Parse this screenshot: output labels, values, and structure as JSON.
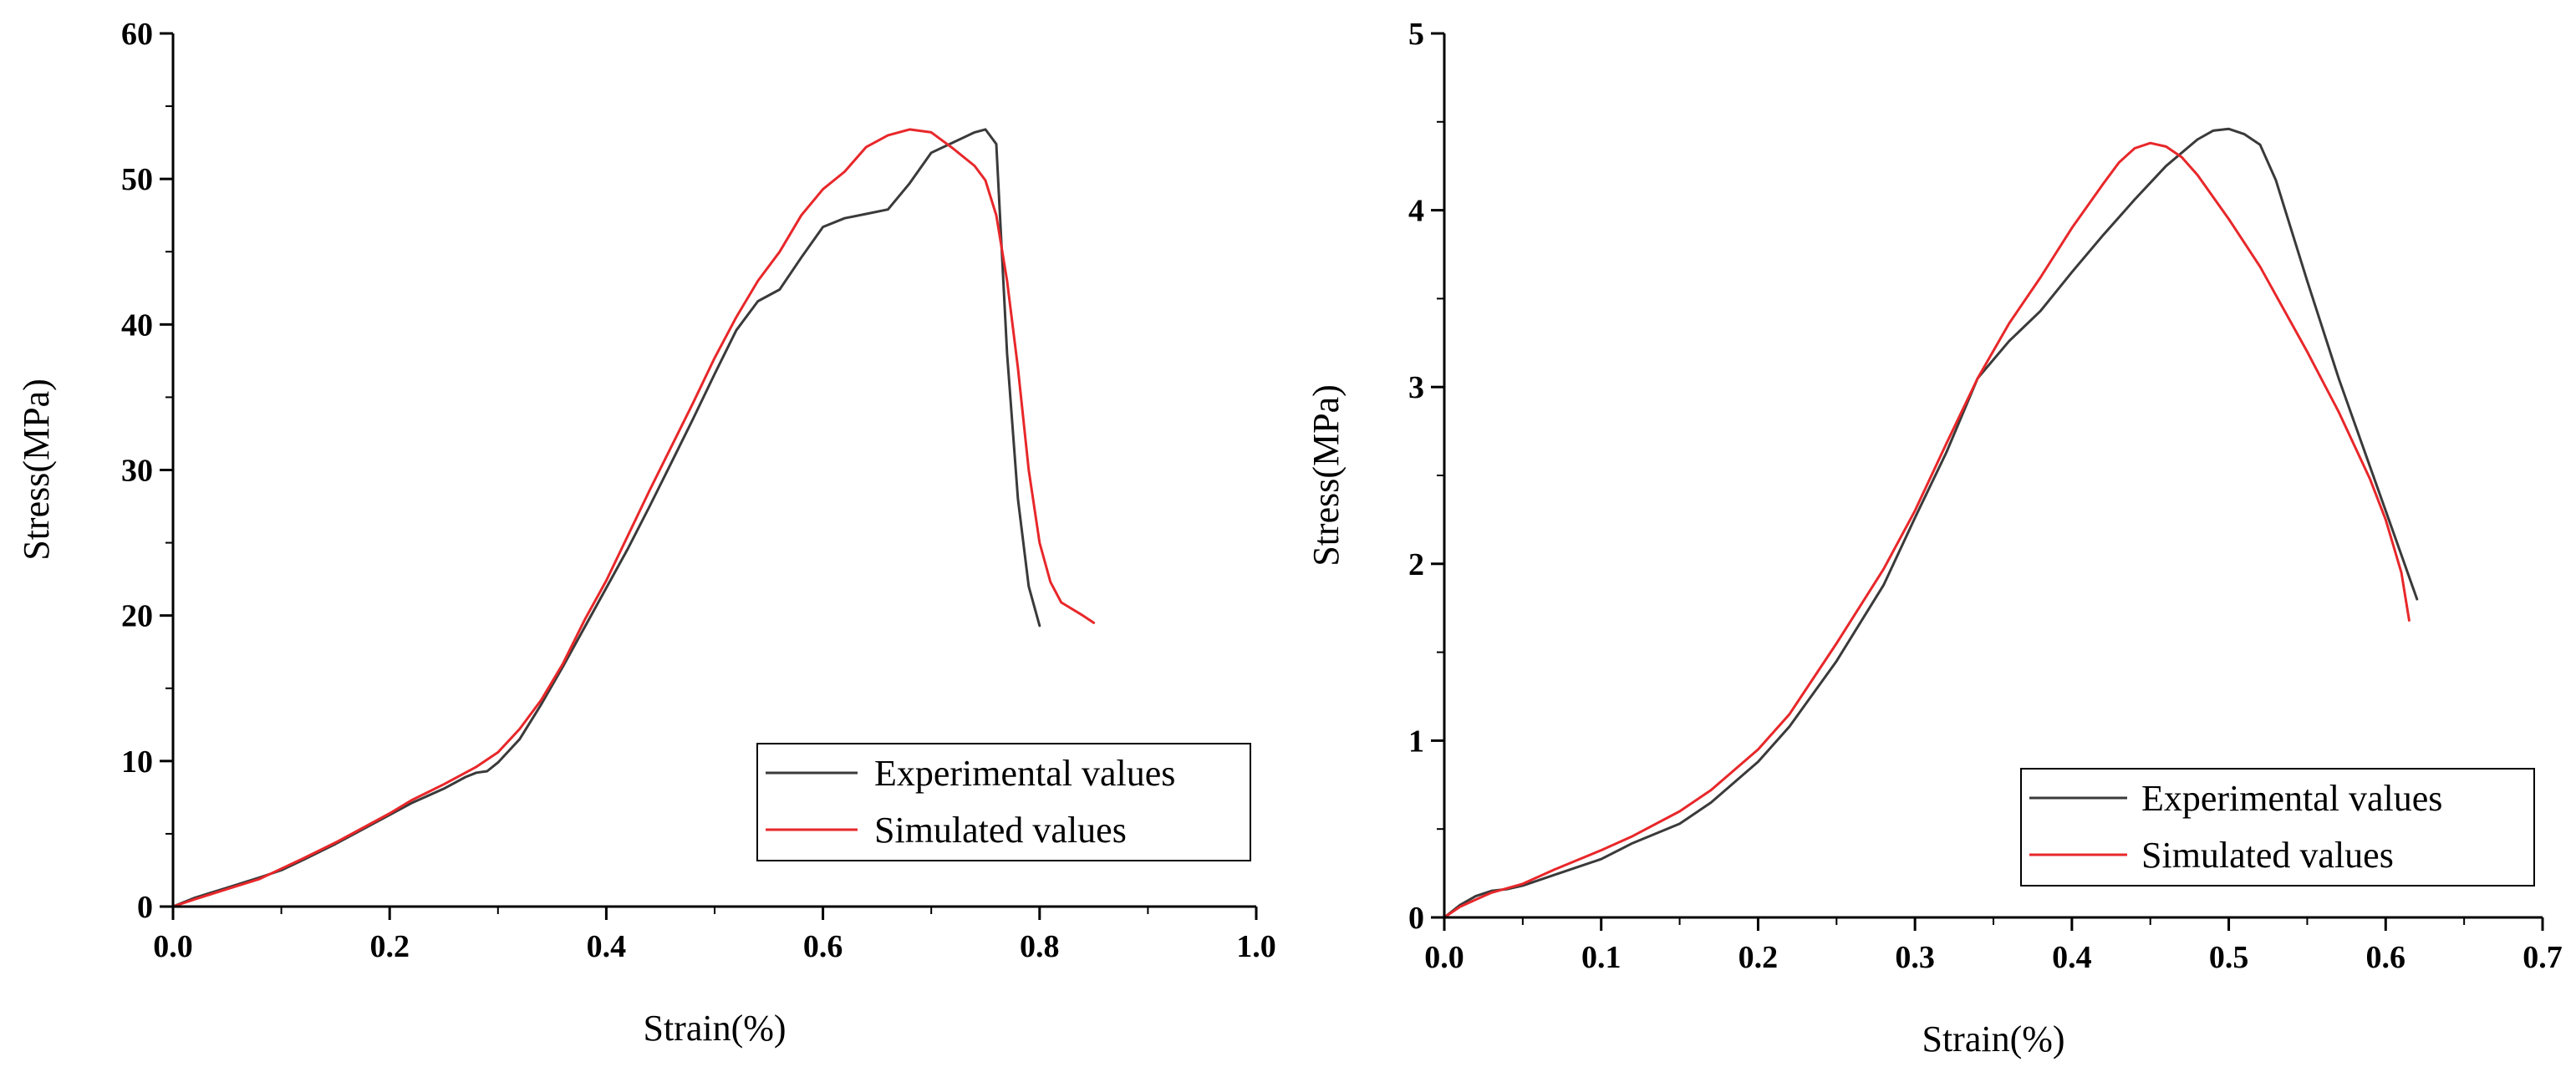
{
  "chart_data": [
    {
      "type": "line",
      "title": "",
      "xlabel": "Strain(%)",
      "ylabel": "Stress(MPa)",
      "xlim": [
        0,
        1.0
      ],
      "ylim": [
        0,
        60
      ],
      "xticks": [
        "0.0",
        "0.2",
        "0.4",
        "0.6",
        "0.8",
        "1.0"
      ],
      "yticks": [
        "0",
        "10",
        "20",
        "30",
        "40",
        "50",
        "60"
      ],
      "grid": false,
      "legend_position": "bottom-right",
      "series": [
        {
          "name": "Experimental values",
          "color": "#3a3a3a",
          "x": [
            0,
            0.02,
            0.05,
            0.08,
            0.1,
            0.12,
            0.15,
            0.18,
            0.2,
            0.22,
            0.25,
            0.27,
            0.28,
            0.29,
            0.3,
            0.32,
            0.34,
            0.36,
            0.38,
            0.4,
            0.42,
            0.44,
            0.46,
            0.48,
            0.5,
            0.52,
            0.54,
            0.56,
            0.58,
            0.6,
            0.62,
            0.64,
            0.66,
            0.68,
            0.7,
            0.72,
            0.74,
            0.75,
            0.76,
            0.77,
            0.78,
            0.79,
            0.8
          ],
          "y": [
            0,
            0.6,
            1.3,
            2.0,
            2.5,
            3.2,
            4.3,
            5.5,
            6.3,
            7.1,
            8.1,
            8.9,
            9.2,
            9.3,
            9.9,
            11.5,
            13.9,
            16.5,
            19.2,
            21.9,
            24.6,
            27.5,
            30.5,
            33.5,
            36.6,
            39.6,
            41.6,
            42.4,
            44.6,
            46.7,
            47.3,
            47.6,
            47.9,
            49.7,
            51.8,
            52.5,
            53.2,
            53.4,
            52.4,
            38.0,
            28.0,
            22.0,
            19.3
          ]
        },
        {
          "name": "Simulated values",
          "color": "#e8272a",
          "x": [
            0,
            0.02,
            0.05,
            0.08,
            0.1,
            0.12,
            0.15,
            0.18,
            0.2,
            0.22,
            0.25,
            0.28,
            0.3,
            0.32,
            0.34,
            0.36,
            0.38,
            0.4,
            0.42,
            0.44,
            0.46,
            0.48,
            0.5,
            0.52,
            0.54,
            0.56,
            0.58,
            0.6,
            0.62,
            0.64,
            0.66,
            0.68,
            0.7,
            0.72,
            0.74,
            0.75,
            0.76,
            0.77,
            0.78,
            0.79,
            0.8,
            0.81,
            0.82,
            0.84,
            0.85
          ],
          "y": [
            0,
            0.5,
            1.2,
            1.9,
            2.6,
            3.3,
            4.4,
            5.6,
            6.4,
            7.3,
            8.4,
            9.6,
            10.6,
            12.2,
            14.2,
            16.7,
            19.7,
            22.4,
            25.5,
            28.6,
            31.6,
            34.6,
            37.7,
            40.5,
            43.0,
            45.0,
            47.5,
            49.3,
            50.5,
            52.2,
            53.0,
            53.4,
            53.2,
            52.1,
            50.9,
            49.9,
            47.5,
            43.0,
            37.0,
            30.0,
            25.0,
            22.3,
            20.9,
            20.0,
            19.5
          ]
        }
      ]
    },
    {
      "type": "line",
      "title": "",
      "xlabel": "Strain(%)",
      "ylabel": "Stress(MPa)",
      "xlim": [
        0,
        0.7
      ],
      "ylim": [
        0,
        5
      ],
      "xticks": [
        "0.0",
        "0.1",
        "0.2",
        "0.3",
        "0.4",
        "0.5",
        "0.6",
        "0.7"
      ],
      "yticks": [
        "0",
        "1",
        "2",
        "3",
        "4",
        "5"
      ],
      "grid": false,
      "legend_position": "bottom-right",
      "series": [
        {
          "name": "Experimental values",
          "color": "#3a3a3a",
          "x": [
            0,
            0.01,
            0.02,
            0.03,
            0.04,
            0.05,
            0.07,
            0.1,
            0.12,
            0.15,
            0.17,
            0.2,
            0.22,
            0.25,
            0.28,
            0.3,
            0.32,
            0.34,
            0.36,
            0.38,
            0.4,
            0.42,
            0.44,
            0.46,
            0.48,
            0.49,
            0.5,
            0.51,
            0.52,
            0.53,
            0.55,
            0.57,
            0.59,
            0.6,
            0.61,
            0.62
          ],
          "y": [
            0,
            0.07,
            0.12,
            0.15,
            0.16,
            0.18,
            0.24,
            0.33,
            0.42,
            0.53,
            0.65,
            0.88,
            1.08,
            1.45,
            1.88,
            2.26,
            2.63,
            3.05,
            3.26,
            3.43,
            3.65,
            3.86,
            4.06,
            4.25,
            4.4,
            4.45,
            4.46,
            4.43,
            4.37,
            4.17,
            3.6,
            3.05,
            2.55,
            2.3,
            2.05,
            1.8
          ]
        },
        {
          "name": "Simulated values",
          "color": "#e8272a",
          "x": [
            0,
            0.01,
            0.02,
            0.03,
            0.05,
            0.07,
            0.1,
            0.12,
            0.15,
            0.17,
            0.2,
            0.22,
            0.25,
            0.28,
            0.3,
            0.32,
            0.34,
            0.36,
            0.38,
            0.4,
            0.42,
            0.43,
            0.44,
            0.45,
            0.46,
            0.47,
            0.48,
            0.5,
            0.52,
            0.55,
            0.57,
            0.59,
            0.6,
            0.61,
            0.615
          ],
          "y": [
            0,
            0.06,
            0.1,
            0.14,
            0.19,
            0.27,
            0.38,
            0.46,
            0.6,
            0.72,
            0.95,
            1.15,
            1.55,
            1.97,
            2.3,
            2.68,
            3.05,
            3.36,
            3.62,
            3.9,
            4.15,
            4.27,
            4.35,
            4.38,
            4.36,
            4.3,
            4.2,
            3.95,
            3.68,
            3.2,
            2.86,
            2.48,
            2.25,
            1.95,
            1.68
          ]
        }
      ]
    }
  ]
}
